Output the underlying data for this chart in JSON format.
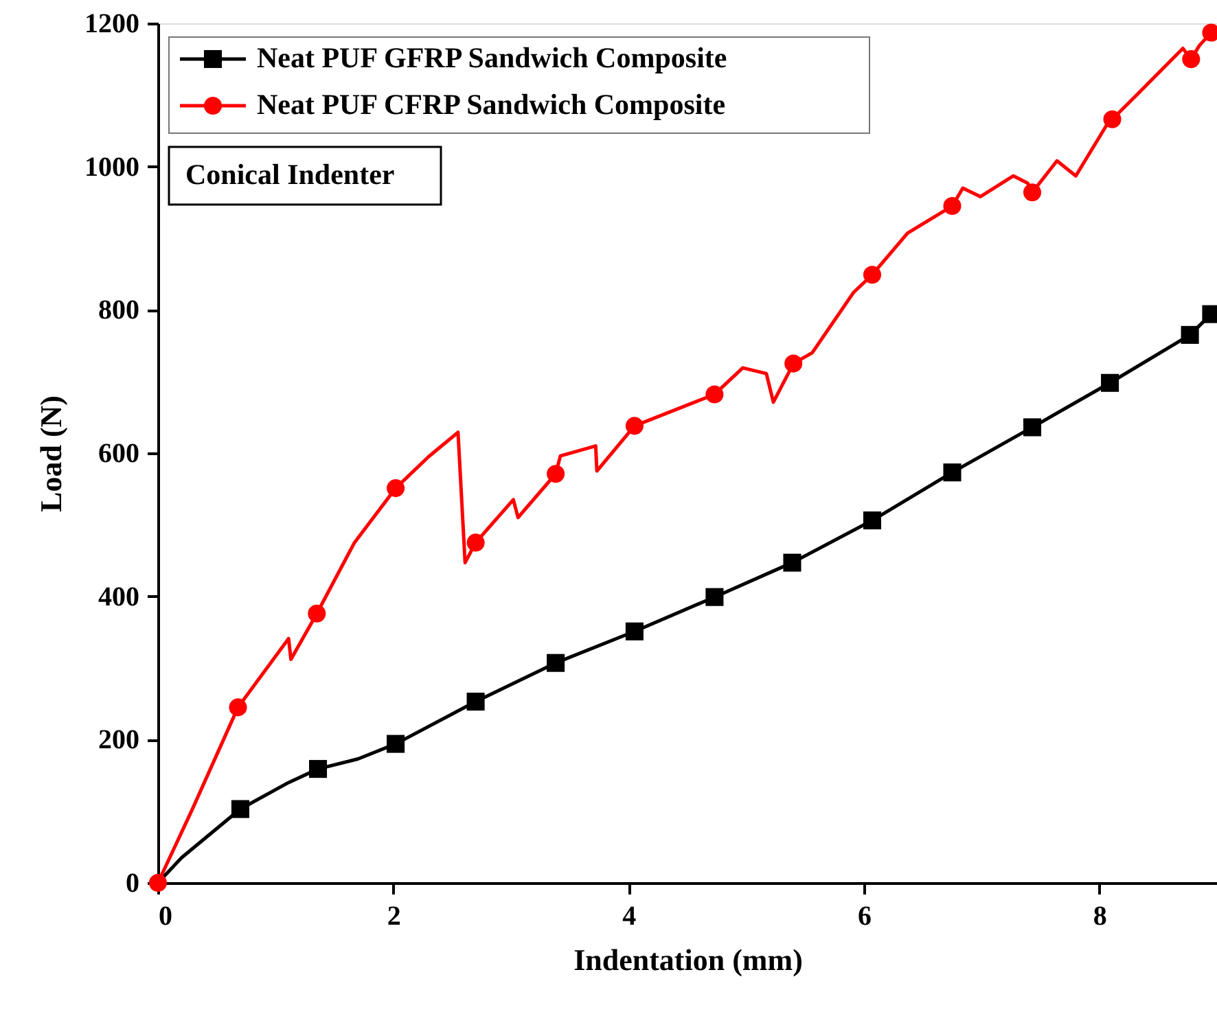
{
  "chart_data": {
    "type": "line",
    "xlabel": "Indentation (mm)",
    "ylabel": "Load (N)",
    "xlim": [
      0,
      9
    ],
    "ylim": [
      0,
      1200
    ],
    "xticks": [
      0,
      2,
      4,
      6,
      8
    ],
    "yticks": [
      0,
      200,
      400,
      600,
      800,
      1000,
      1200
    ],
    "grid": false,
    "legend": "top left",
    "annotations": [
      "Conical Indenter"
    ],
    "series": [
      {
        "name": "Neat PUF GFRP Sandwich Composite",
        "color": "#000000",
        "marker": "none",
        "x": [
          0,
          0.2,
          0.7,
          1.11,
          1.36,
          1.7,
          2.02,
          2.7,
          3.38,
          4.05,
          4.73,
          5.39,
          6.07,
          6.75,
          7.43,
          8.09,
          8.77,
          8.95
        ],
        "values": [
          0,
          35,
          103,
          140,
          159,
          173,
          194,
          253,
          307,
          351,
          399,
          447,
          506,
          573,
          636,
          698,
          765,
          794
        ]
      },
      {
        "type": "scatter",
        "color": "#000000",
        "marker": "square",
        "x": [
          0.7,
          1.36,
          2.02,
          2.7,
          3.38,
          4.05,
          4.73,
          5.39,
          6.07,
          6.75,
          7.43,
          8.09,
          8.77,
          8.95
        ],
        "values": [
          103,
          159,
          194,
          253,
          307,
          351,
          399,
          447,
          506,
          573,
          636,
          698,
          765,
          794
        ]
      },
      {
        "name": "Neat PUF CFRP Sandwich Composite",
        "color": "#ff0000",
        "marker": "none",
        "x": [
          0,
          0.29,
          0.68,
          1.11,
          1.13,
          1.35,
          1.67,
          2.02,
          2.3,
          2.55,
          2.61,
          2.7,
          3.02,
          3.06,
          3.38,
          3.42,
          3.72,
          3.73,
          4.05,
          4.73,
          4.97,
          5.17,
          5.23,
          5.4,
          5.56,
          5.91,
          6.07,
          6.37,
          6.75,
          6.84,
          6.99,
          7.27,
          7.39,
          7.43,
          7.64,
          7.8,
          8.07,
          8.11,
          8.33,
          8.48,
          8.71,
          8.78,
          8.85,
          8.95
        ],
        "values": [
          0,
          102,
          245,
          341,
          312,
          376,
          475,
          551,
          595,
          629,
          447,
          475,
          535,
          510,
          571,
          596,
          610,
          575,
          638,
          682,
          719,
          711,
          671,
          725,
          740,
          824,
          849,
          907,
          945,
          970,
          958,
          987,
          977,
          964,
          1008,
          987,
          1060,
          1066,
          1102,
          1127,
          1165,
          1150,
          1169,
          1187
        ]
      },
      {
        "type": "scatter",
        "color": "#ff0000",
        "marker": "circle",
        "x": [
          0,
          0.68,
          1.35,
          2.02,
          2.7,
          3.38,
          4.05,
          4.73,
          5.4,
          6.07,
          6.75,
          7.43,
          8.11,
          8.78,
          8.95
        ],
        "values": [
          0,
          245,
          376,
          551,
          475,
          571,
          638,
          682,
          725,
          849,
          945,
          964,
          1066,
          1150,
          1187
        ]
      }
    ]
  }
}
